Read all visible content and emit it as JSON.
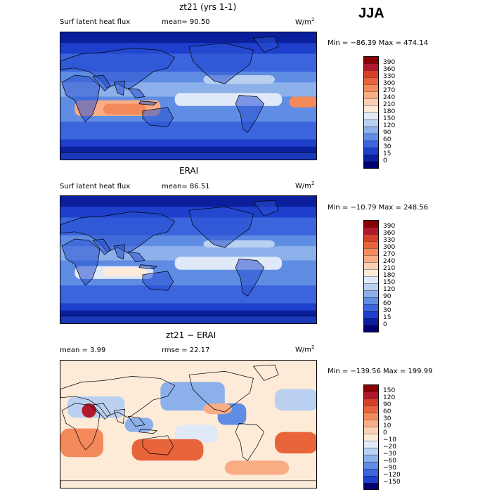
{
  "season": "JJA",
  "panels": [
    {
      "id": "model",
      "title": "zt21 (yrs 1-1)",
      "left_label": "Surf latent heat flux",
      "right_label": "mean=  90.50",
      "units": "W/m",
      "units_sup": "2",
      "minmax": "Min = −86.39  Max = 474.14",
      "map_style": "flux_model",
      "colorbar": {
        "labels": [
          "390",
          "360",
          "330",
          "300",
          "270",
          "240",
          "210",
          "180",
          "150",
          "120",
          "90",
          "60",
          "30",
          "15",
          "0"
        ],
        "colors": [
          "#8b0000",
          "#b2182b",
          "#d6402a",
          "#e8643a",
          "#f4895b",
          "#f9ad85",
          "#fcd0b3",
          "#fdebd8",
          "#dfe9f7",
          "#b9d0f0",
          "#8cb0ea",
          "#5f8de3",
          "#3a65dd",
          "#1e3fcc",
          "#0b1f9c",
          "#000070"
        ]
      }
    },
    {
      "id": "obs",
      "title": "ERAI",
      "left_label": "Surf latent heat flux",
      "right_label": "mean=  86.51",
      "units": "W/m",
      "units_sup": "2",
      "minmax": "Min = −10.79  Max = 248.56",
      "map_style": "flux_obs",
      "colorbar": {
        "labels": [
          "390",
          "360",
          "330",
          "300",
          "270",
          "240",
          "210",
          "180",
          "150",
          "120",
          "90",
          "60",
          "30",
          "15",
          "0"
        ],
        "colors": [
          "#8b0000",
          "#b2182b",
          "#d6402a",
          "#e8643a",
          "#f4895b",
          "#f9ad85",
          "#fcd0b3",
          "#fdebd8",
          "#dfe9f7",
          "#b9d0f0",
          "#8cb0ea",
          "#5f8de3",
          "#3a65dd",
          "#1e3fcc",
          "#0b1f9c",
          "#000070"
        ]
      }
    },
    {
      "id": "diff",
      "title": "zt21 − ERAI",
      "left_label": "mean =   3.99",
      "right_label": "rmse =  22.17",
      "units": "W/m",
      "units_sup": "2",
      "minmax": "Min = −139.56  Max = 199.99",
      "map_style": "diff",
      "colorbar": {
        "labels": [
          "150",
          "120",
          "90",
          "60",
          "30",
          "10",
          "0",
          "−10",
          "−20",
          "−30",
          "−60",
          "−90",
          "−120",
          "−150"
        ],
        "colors": [
          "#8b0000",
          "#b2182b",
          "#d6402a",
          "#e8643a",
          "#f4895b",
          "#f9ad85",
          "#fcd0b3",
          "#fdebd8",
          "#dfe9f7",
          "#b9d0f0",
          "#8cb0ea",
          "#5f8de3",
          "#3a65dd",
          "#1e3fcc",
          "#000070"
        ]
      }
    }
  ]
}
